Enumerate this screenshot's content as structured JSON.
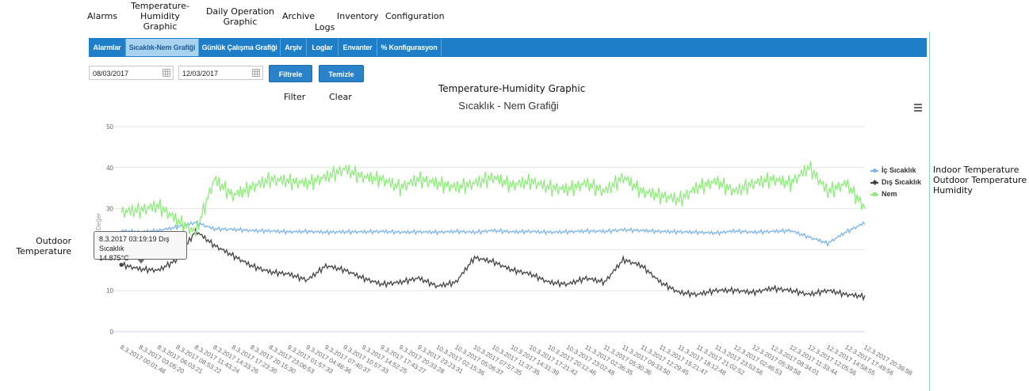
{
  "annotations": {
    "alarms": "Alarms",
    "temp_hum": "Temperature-\nHumidity\nGraphic",
    "daily": "Daily Operation\nGraphic",
    "archive": "Archive",
    "logs": "Logs",
    "inventory": "Inventory",
    "configuration": "Configuration",
    "filter": "Filter",
    "clear": "Clear",
    "chart_title_en": "Temperature-Humidity Graphic",
    "legend_en": "Indoor Temperature\nOutdoor Temperature\nHumidity",
    "tooltip_en": "Outdoor\nTemperature"
  },
  "tabs": [
    {
      "label": "Alarmlar"
    },
    {
      "label": "Sıcaklık-Nem Grafiği"
    },
    {
      "label": "Günlük Çalışma Grafiği"
    },
    {
      "label": "Arşiv"
    },
    {
      "label": "Loglar"
    },
    {
      "label": "Envanter"
    },
    {
      "label": "Konfigurasyon"
    }
  ],
  "filters": {
    "start_date": "08/03/2017",
    "end_date": "12/03/2017",
    "filter_label": "Filtrele",
    "clear_label": "Temizle"
  },
  "tooltip": {
    "line1": "8.3.2017 03:19:19 Dış Sıcaklık",
    "line2": "14.875°C"
  },
  "colors": {
    "nav": "#1e7ec8",
    "indoor": "#7cb5ec",
    "outdoor": "#434348",
    "humidity": "#90ed7d"
  },
  "chart_data": {
    "type": "line",
    "title": "Sıcaklık - Nem Grafiği",
    "ylabel": "Değer",
    "ylim": [
      0,
      50
    ],
    "yticks": [
      0,
      10,
      20,
      30,
      40,
      50
    ],
    "grid": true,
    "legend_position": "right",
    "x": [
      "8.3.2017 00:01:48",
      "8.3.2017 03:05:20",
      "8.3.2017 06:03:21",
      "8.3.2017 08:53:22",
      "8.3.2017 11:43:24",
      "8.3.2017 14:33:26",
      "8.3.2017 17:23:30",
      "8.3.2017 20:15:30",
      "8.3.2017 23:06:53",
      "9.3.2017 01:57:33",
      "9.3.2017 04:48:36",
      "9.3.2017 07:40:37",
      "9.3.2017 10:57:33",
      "9.3.2017 14:52:25",
      "9.3.2017 17:43:27",
      "9.3.2017 20:33:28",
      "9.3.2017 23:23:31",
      "10.3.2017 02:15:36",
      "10.3.2017 05:06:37",
      "10.3.2017 07:57:35",
      "10.3.2017 11:37:35",
      "10.3.2017 14:31:39",
      "10.3.2017 17:21:42",
      "10.3.2017 20:12:46",
      "10.3.2017 23:02:48",
      "11.3.2017 02:36:35",
      "11.3.2017 05:30:36",
      "11.3.2017 09:33:50",
      "11.3.2017 12:29:45",
      "11.3.2017 15:21:47",
      "11.3.2017 18:12:48",
      "11.3.2017 21:02:52",
      "11.3.2017 23:53:56",
      "12.3.2017 02:46:53",
      "12.3.2017 05:39:58",
      "12.3.2017 08:34:01",
      "12.3.2017 11:33:44",
      "12.3.2017 12:05:56",
      "12.3.2017 14:58:55",
      "12.3.2017 17:49:56",
      "12.3.2017 20:39:58"
    ],
    "series": [
      {
        "name": "İç Sıcaklık",
        "color": "#7cb5ec",
        "values": [
          24.5,
          24.3,
          24.6,
          25.5,
          26.6,
          25.0,
          24.9,
          24.6,
          24.5,
          24.3,
          24.4,
          24.2,
          24.3,
          24.3,
          24.4,
          24.2,
          24.3,
          24.2,
          24.4,
          24.2,
          24.6,
          24.3,
          24.4,
          24.2,
          24.3,
          24.5,
          24.4,
          24.8,
          24.6,
          24.4,
          24.3,
          24.2,
          24.0,
          24.5,
          24.2,
          24.4,
          24.6,
          23.0,
          21.5,
          24.3,
          26.5
        ]
      },
      {
        "name": "Dış Sıcaklık",
        "color": "#434348",
        "values": [
          16.3,
          15.2,
          14.9,
          17.5,
          24.5,
          21.0,
          18.5,
          16.0,
          14.5,
          14.0,
          12.5,
          16.0,
          15.0,
          13.0,
          11.5,
          12.0,
          13.0,
          11.0,
          12.0,
          18.0,
          17.0,
          15.0,
          14.0,
          12.0,
          11.5,
          13.0,
          12.0,
          17.5,
          16.0,
          12.0,
          9.5,
          9.0,
          10.0,
          10.0,
          9.5,
          10.5,
          10.0,
          9.0,
          10.0,
          9.0,
          8.5
        ]
      },
      {
        "name": "Nem",
        "color": "#90ed7d",
        "values": [
          29.0,
          29.5,
          30.5,
          27.0,
          24.0,
          37.0,
          33.0,
          35.0,
          37.0,
          36.5,
          36.0,
          37.5,
          39.5,
          37.5,
          37.0,
          35.0,
          37.0,
          36.0,
          35.0,
          36.0,
          37.5,
          35.5,
          36.5,
          35.0,
          34.5,
          36.0,
          34.0,
          37.5,
          34.0,
          33.0,
          32.0,
          35.0,
          36.5,
          34.0,
          36.0,
          37.0,
          36.0,
          40.0,
          34.0,
          36.0,
          30.0
        ]
      }
    ]
  }
}
